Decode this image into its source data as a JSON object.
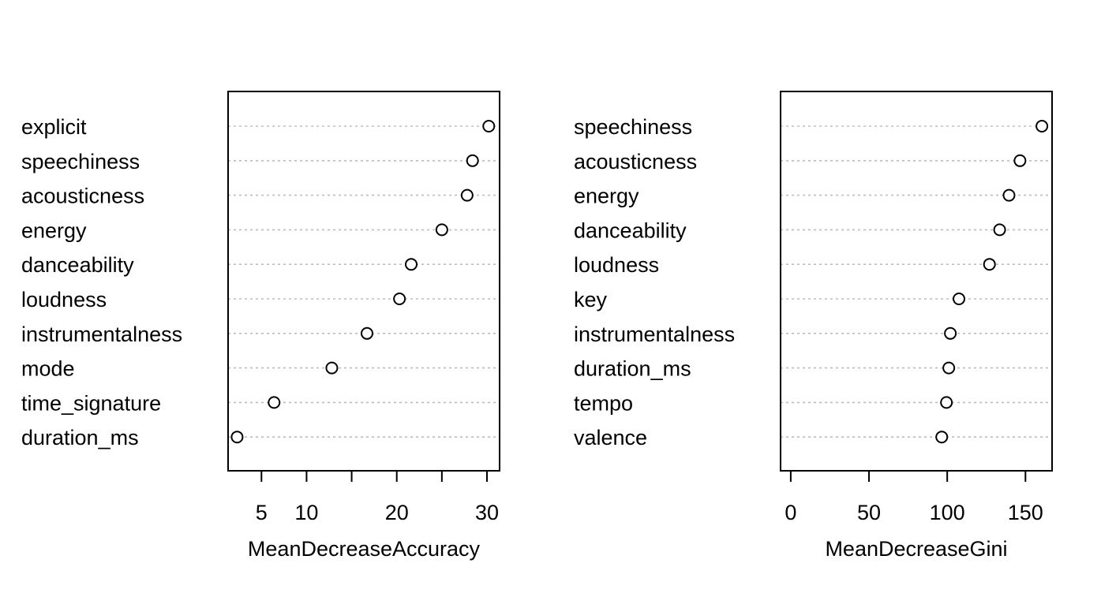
{
  "chart_data": [
    {
      "type": "scatter",
      "title": "",
      "xlabel": "MeanDecreaseAccuracy",
      "ylabel": "",
      "categories": [
        "explicit",
        "speechiness",
        "acousticness",
        "energy",
        "danceability",
        "loudness",
        "instrumentalness",
        "mode",
        "time_signature",
        "duration_ms"
      ],
      "values": [
        30.2,
        28.4,
        27.8,
        25.0,
        21.6,
        20.3,
        16.7,
        12.8,
        6.4,
        2.3
      ],
      "xlim": [
        1.3,
        31.4
      ],
      "xticks": [
        5,
        10,
        20,
        30
      ],
      "xtick_marks": [
        5,
        10,
        15,
        20,
        25,
        30
      ],
      "grid": "dotted horizontal",
      "marker": "open circle"
    },
    {
      "type": "scatter",
      "title": "",
      "xlabel": "MeanDecreaseGini",
      "ylabel": "",
      "categories": [
        "speechiness",
        "acousticness",
        "energy",
        "danceability",
        "loudness",
        "key",
        "instrumentalness",
        "duration_ms",
        "tempo",
        "valence"
      ],
      "values": [
        160.5,
        146.5,
        139.5,
        133.5,
        127.0,
        107.5,
        102.0,
        101.0,
        99.5,
        96.5
      ],
      "xlim": [
        -6.5,
        167
      ],
      "xticks": [
        0,
        50,
        100,
        150
      ],
      "xtick_marks": [
        0,
        50,
        100,
        150
      ],
      "grid": "dotted horizontal",
      "marker": "open circle"
    }
  ]
}
